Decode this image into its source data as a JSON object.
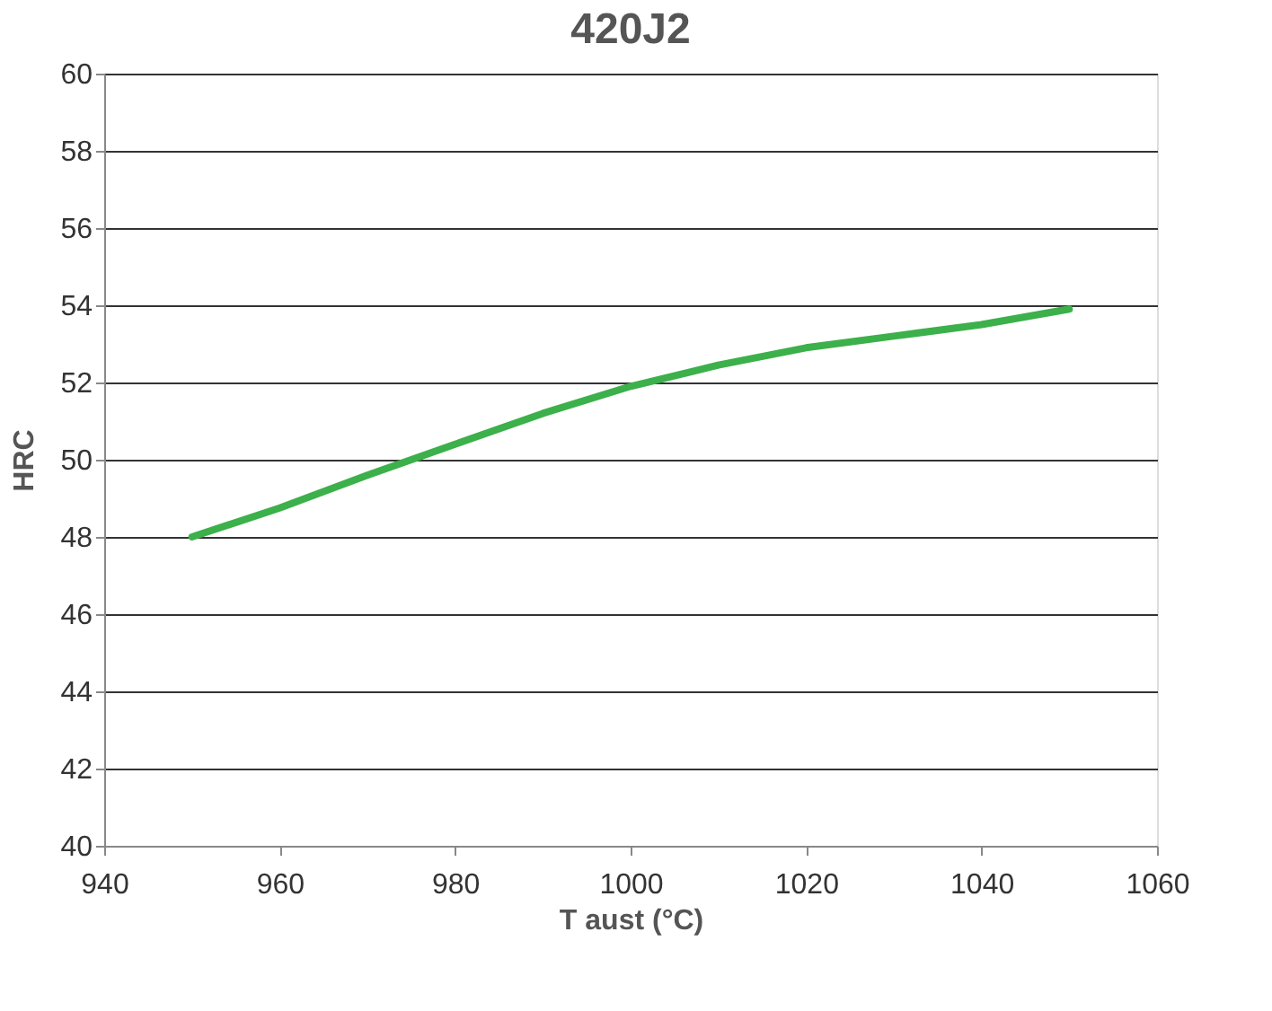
{
  "chart_data": {
    "type": "line",
    "title": "420J2",
    "xlabel": "T aust (°C)",
    "ylabel": "HRC",
    "x": [
      950,
      960,
      970,
      980,
      990,
      1000,
      1010,
      1020,
      1030,
      1040,
      1050
    ],
    "series": [
      {
        "color": "#3cb04a",
        "values": [
          48,
          48.75,
          49.6,
          50.4,
          51.2,
          51.9,
          52.45,
          52.9,
          53.2,
          53.5,
          53.9
        ]
      }
    ],
    "xlim": [
      940,
      1060
    ],
    "xticks": [
      940,
      960,
      980,
      1000,
      1020,
      1040,
      1060
    ],
    "ylim": [
      40,
      60
    ],
    "yticks": [
      40,
      42,
      44,
      46,
      48,
      50,
      52,
      54,
      56,
      58,
      60
    ],
    "grid": "y",
    "marker": "none",
    "line_style": "solid"
  }
}
